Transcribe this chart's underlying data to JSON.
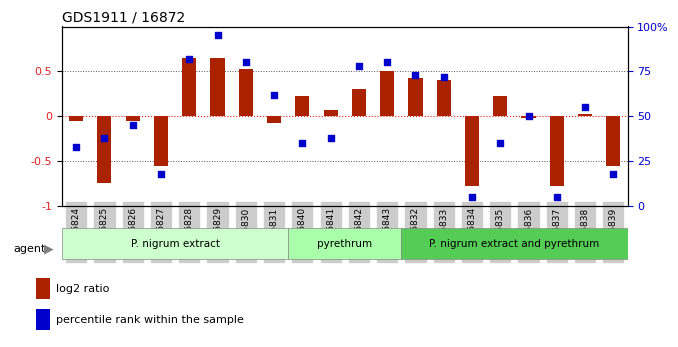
{
  "title": "GDS1911 / 16872",
  "samples": [
    "GSM66824",
    "GSM66825",
    "GSM66826",
    "GSM66827",
    "GSM66828",
    "GSM66829",
    "GSM66830",
    "GSM66831",
    "GSM66840",
    "GSM66841",
    "GSM66842",
    "GSM66843",
    "GSM66832",
    "GSM66833",
    "GSM66834",
    "GSM66835",
    "GSM66836",
    "GSM66837",
    "GSM66838",
    "GSM66839"
  ],
  "log2_ratio": [
    -0.05,
    -0.75,
    -0.05,
    -0.55,
    0.65,
    0.65,
    0.53,
    -0.08,
    0.22,
    0.07,
    0.3,
    0.5,
    0.43,
    0.4,
    -0.78,
    0.23,
    -0.02,
    -0.78,
    0.03,
    -0.55
  ],
  "percentile": [
    33,
    38,
    45,
    18,
    82,
    95,
    80,
    62,
    35,
    38,
    78,
    80,
    73,
    72,
    5,
    35,
    50,
    5,
    55,
    18
  ],
  "groups": [
    {
      "label": "P. nigrum extract",
      "start": 0,
      "end": 8,
      "color": "#ccffcc"
    },
    {
      "label": "pyrethrum",
      "start": 8,
      "end": 12,
      "color": "#aaffaa"
    },
    {
      "label": "P. nigrum extract and pyrethrum",
      "start": 12,
      "end": 20,
      "color": "#55cc55"
    }
  ],
  "bar_color": "#aa2200",
  "dot_color": "#0000cc",
  "bar_width": 0.5,
  "ylim": [
    -1.0,
    1.0
  ],
  "y_ticks_left": [
    -1,
    -0.5,
    0,
    0.5
  ],
  "y_ticks_right": [
    0,
    25,
    50,
    75,
    100
  ],
  "dotted_lines": [
    -0.5,
    0,
    0.5
  ],
  "zero_line_color": "#dd2222",
  "grid_color": "#555555",
  "background_color": "#ffffff",
  "tick_bg_color": "#cccccc"
}
